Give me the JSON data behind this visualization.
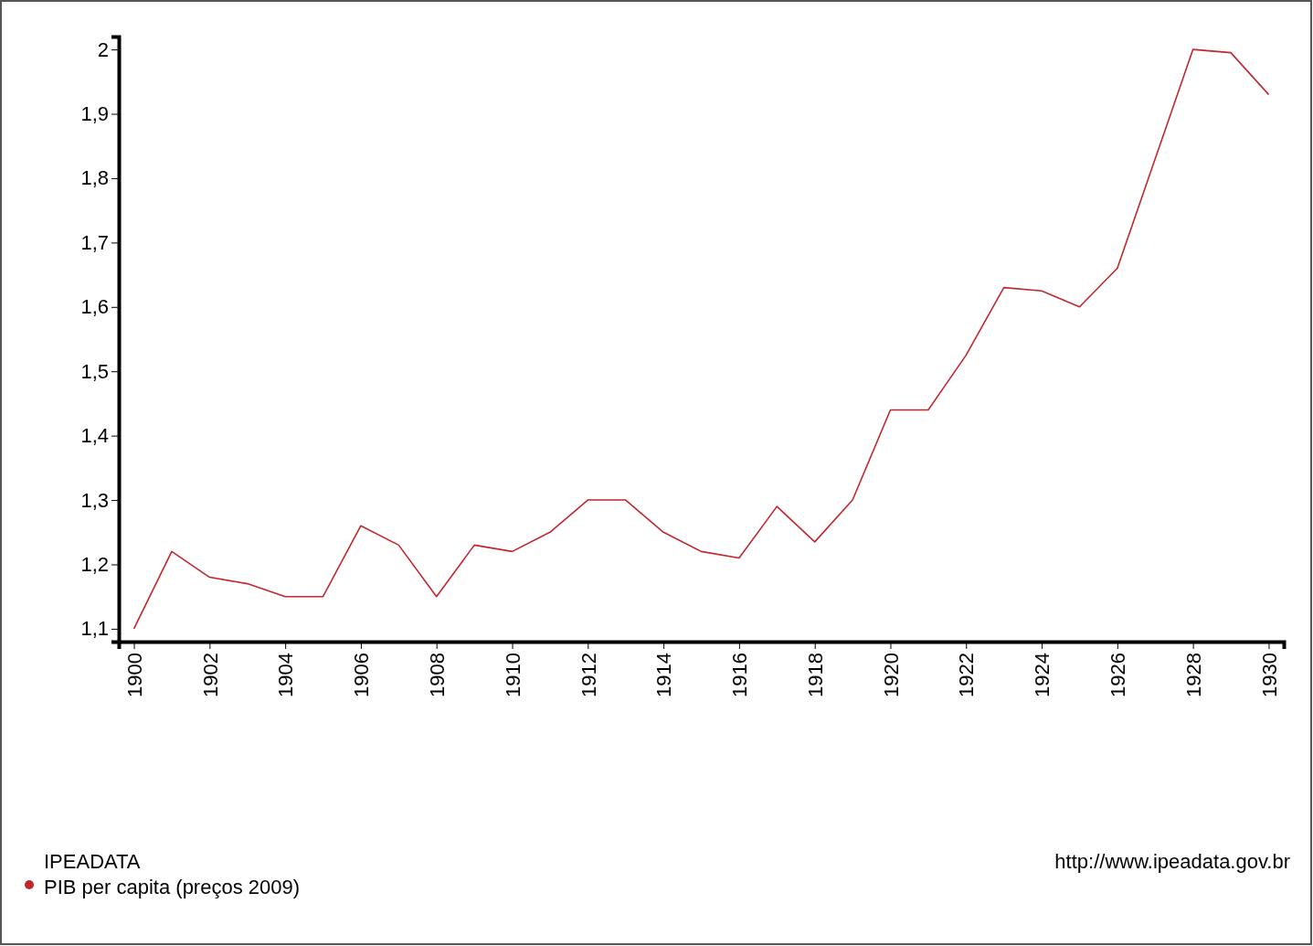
{
  "chart_data": {
    "type": "line",
    "legend_title": "IPEADATA",
    "legend": "bottom left",
    "annotations": [
      "http://www.ipeadata.gov.br"
    ],
    "x": [
      1900,
      1901,
      1902,
      1903,
      1904,
      1905,
      1906,
      1907,
      1908,
      1909,
      1910,
      1911,
      1912,
      1913,
      1914,
      1915,
      1916,
      1917,
      1918,
      1919,
      1920,
      1921,
      1922,
      1923,
      1924,
      1925,
      1926,
      1927,
      1928,
      1929,
      1930
    ],
    "series": [
      {
        "name": "PIB per capita (preços 2009)",
        "color": "#c0282d",
        "values": [
          1.1,
          1.22,
          1.18,
          1.17,
          1.15,
          1.15,
          1.26,
          1.23,
          1.15,
          1.23,
          1.22,
          1.25,
          1.3,
          1.3,
          1.25,
          1.22,
          1.21,
          1.29,
          1.235,
          1.3,
          1.44,
          1.44,
          1.525,
          1.63,
          1.625,
          1.6,
          1.66,
          1.83,
          2.0,
          1.995,
          1.93
        ]
      }
    ],
    "xlim": [
      1899.6,
      1930.4
    ],
    "xticks": [
      1900,
      1902,
      1904,
      1906,
      1908,
      1910,
      1912,
      1914,
      1916,
      1918,
      1920,
      1922,
      1924,
      1926,
      1928,
      1930
    ],
    "ylim": [
      1.08,
      2.02
    ],
    "yticks": [
      {
        "value": 1.1,
        "label": "1,1"
      },
      {
        "value": 1.2,
        "label": "1,2"
      },
      {
        "value": 1.3,
        "label": "1,3"
      },
      {
        "value": 1.4,
        "label": "1,4"
      },
      {
        "value": 1.5,
        "label": "1,5"
      },
      {
        "value": 1.6,
        "label": "1,6"
      },
      {
        "value": 1.7,
        "label": "1,7"
      },
      {
        "value": 1.8,
        "label": "1,8"
      },
      {
        "value": 1.9,
        "label": "1,9"
      },
      {
        "value": 2,
        "label": "2"
      }
    ],
    "grid": false,
    "marker": "none",
    "line_style": "solid"
  }
}
